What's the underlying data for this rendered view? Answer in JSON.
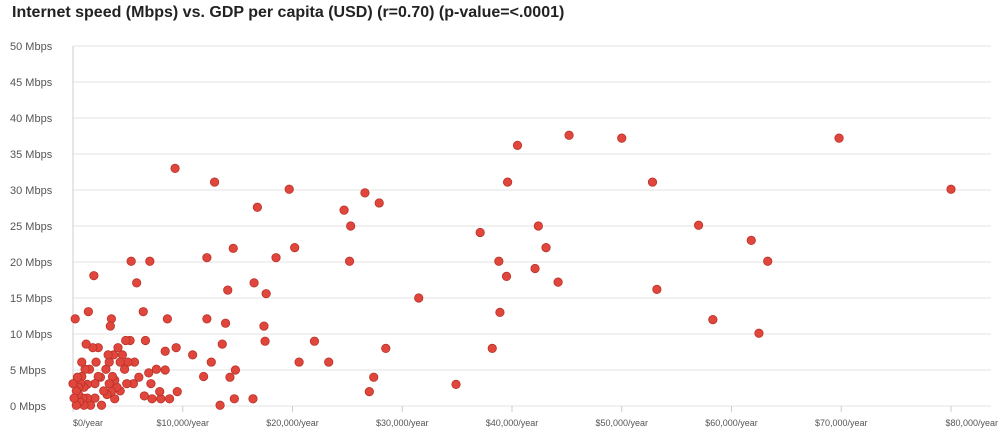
{
  "chart_data": {
    "type": "scatter",
    "title": "Internet speed (Mbps) vs. GDP per capita (USD) (r=0.70) (p-value=<.0001)",
    "xlabel": "",
    "ylabel": "",
    "xlim": [
      0,
      80000
    ],
    "ylim": [
      0,
      50
    ],
    "x_ticks": [
      0,
      10000,
      20000,
      30000,
      40000,
      50000,
      60000,
      70000,
      80000
    ],
    "x_tick_labels": [
      "$0/year",
      "$10,000/year",
      "$20,000/year",
      "$30,000/year",
      "$40,000/year",
      "$50,000/year",
      "$60,000/year",
      "$70,000/year",
      "$80,000/year"
    ],
    "y_ticks": [
      0,
      5,
      10,
      15,
      20,
      25,
      30,
      35,
      40,
      45,
      50
    ],
    "y_tick_labels": [
      "0 Mbps",
      "5 Mbps",
      "10 Mbps",
      "15 Mbps",
      "20 Mbps",
      "25 Mbps",
      "30 Mbps",
      "35 Mbps",
      "40 Mbps",
      "45 Mbps",
      "50 Mbps"
    ],
    "grid": true,
    "legend": "none",
    "point_color": "#e0463c",
    "point_stroke": "#b83228",
    "grid_color": "#e3e3e3",
    "points": [
      [
        80000,
        30.1
      ],
      [
        69800,
        37.2
      ],
      [
        63300,
        20.1
      ],
      [
        62500,
        10.1
      ],
      [
        61800,
        23
      ],
      [
        58300,
        12
      ],
      [
        57000,
        25.1
      ],
      [
        53200,
        16.2
      ],
      [
        52800,
        31.1
      ],
      [
        50000,
        37.2
      ],
      [
        45200,
        37.6
      ],
      [
        44200,
        17.2
      ],
      [
        43100,
        22
      ],
      [
        42400,
        25
      ],
      [
        42100,
        19.1
      ],
      [
        40500,
        36.2
      ],
      [
        39600,
        31.1
      ],
      [
        39500,
        18
      ],
      [
        38900,
        13
      ],
      [
        38800,
        20.1
      ],
      [
        38200,
        8
      ],
      [
        37100,
        24.1
      ],
      [
        34900,
        3
      ],
      [
        31500,
        15
      ],
      [
        28500,
        8
      ],
      [
        27900,
        28.2
      ],
      [
        27400,
        4
      ],
      [
        27000,
        2
      ],
      [
        26600,
        29.6
      ],
      [
        25300,
        25
      ],
      [
        25200,
        20.1
      ],
      [
        24700,
        27.2
      ],
      [
        23300,
        6.1
      ],
      [
        22000,
        9
      ],
      [
        20600,
        6.1
      ],
      [
        20200,
        22
      ],
      [
        19700,
        30.1
      ],
      [
        18500,
        20.6
      ],
      [
        17600,
        15.6
      ],
      [
        17500,
        9
      ],
      [
        17400,
        11.1
      ],
      [
        16800,
        27.6
      ],
      [
        16500,
        17.1
      ],
      [
        16400,
        1
      ],
      [
        14800,
        5
      ],
      [
        14700,
        1
      ],
      [
        14600,
        21.9
      ],
      [
        14300,
        4
      ],
      [
        14100,
        16.1
      ],
      [
        13900,
        11.5
      ],
      [
        13600,
        8.6
      ],
      [
        13400,
        0.1
      ],
      [
        12900,
        31.1
      ],
      [
        12600,
        6.1
      ],
      [
        12200,
        12.1
      ],
      [
        12200,
        20.6
      ],
      [
        11900,
        4.1
      ],
      [
        10900,
        7.1
      ],
      [
        9500,
        2
      ],
      [
        9400,
        8.1
      ],
      [
        9300,
        33
      ],
      [
        8800,
        1
      ],
      [
        8600,
        12.1
      ],
      [
        8400,
        7.6
      ],
      [
        8400,
        5
      ],
      [
        8000,
        1
      ],
      [
        7900,
        2
      ],
      [
        7600,
        5.1
      ],
      [
        7200,
        1
      ],
      [
        7100,
        3.1
      ],
      [
        7000,
        20.1
      ],
      [
        6900,
        4.6
      ],
      [
        6600,
        9.1
      ],
      [
        6500,
        1.4
      ],
      [
        6400,
        13.1
      ],
      [
        6000,
        4
      ],
      [
        5800,
        17.1
      ],
      [
        5600,
        6.1
      ],
      [
        5500,
        3.1
      ],
      [
        5300,
        20.1
      ],
      [
        5200,
        9.1
      ],
      [
        5000,
        6.1
      ],
      [
        4900,
        3.1
      ],
      [
        4800,
        9.1
      ],
      [
        4700,
        5.1
      ],
      [
        4500,
        7.1
      ],
      [
        4300,
        2.1
      ],
      [
        4300,
        6.1
      ],
      [
        4100,
        8.1
      ],
      [
        4000,
        2.6
      ],
      [
        3800,
        1
      ],
      [
        3800,
        3.6
      ],
      [
        3700,
        7.1
      ],
      [
        3600,
        4.1
      ],
      [
        3500,
        12.1
      ],
      [
        3500,
        2
      ],
      [
        3400,
        11.1
      ],
      [
        3300,
        3.1
      ],
      [
        3300,
        6.1
      ],
      [
        3200,
        7.1
      ],
      [
        3100,
        1.6
      ],
      [
        3000,
        5.1
      ],
      [
        2800,
        2.1
      ],
      [
        2600,
        0.1
      ],
      [
        2500,
        4
      ],
      [
        2300,
        8.1
      ],
      [
        2300,
        4.1
      ],
      [
        2100,
        6.1
      ],
      [
        2000,
        1.1
      ],
      [
        2000,
        3.1
      ],
      [
        1900,
        18.1
      ],
      [
        1800,
        8.1
      ],
      [
        1600,
        0.1
      ],
      [
        1500,
        5.1
      ],
      [
        1400,
        13.1
      ],
      [
        1300,
        1.1
      ],
      [
        1300,
        3
      ],
      [
        1200,
        8.6
      ],
      [
        1100,
        5.1
      ],
      [
        1000,
        0.1
      ],
      [
        1000,
        2.6
      ],
      [
        900,
        1.1
      ],
      [
        800,
        6.1
      ],
      [
        800,
        4.1
      ],
      [
        700,
        3.1
      ],
      [
        600,
        0.6
      ],
      [
        500,
        1.6
      ],
      [
        500,
        2.6
      ],
      [
        400,
        4
      ],
      [
        300,
        0.1
      ],
      [
        300,
        2.1
      ],
      [
        200,
        12.1
      ],
      [
        100,
        1.1
      ],
      [
        0,
        3.1
      ]
    ]
  }
}
